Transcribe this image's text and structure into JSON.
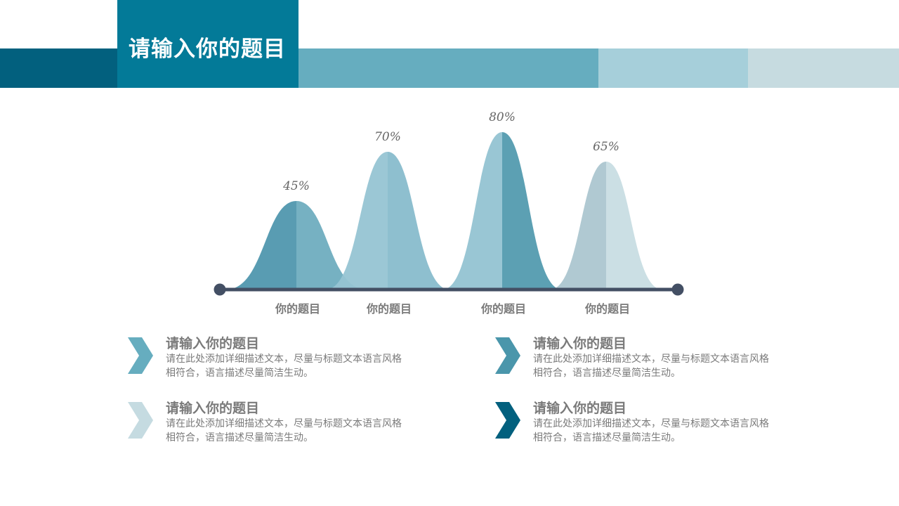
{
  "header": {
    "title": "请输入你的题目",
    "band_colors": [
      "#02607e",
      "#66adbf",
      "#66adbf",
      "#a6cfda",
      "#c6dbe0"
    ]
  },
  "chart_data": {
    "type": "area",
    "categories": [
      "你的题目",
      "你的题目",
      "你的题目",
      "你的题目"
    ],
    "values": [
      45,
      70,
      80,
      65
    ],
    "value_labels": [
      "45%",
      "70%",
      "80%",
      "65%"
    ],
    "ylim": [
      0,
      100
    ],
    "grid": false,
    "colors": [
      [
        "#5097ae",
        "#67a8bb"
      ],
      [
        "#96c4d3",
        "#82b8ca"
      ],
      [
        "#93c3d2",
        "#4a96ab"
      ],
      [
        "#acc6d0",
        "#c5dbe1"
      ]
    ],
    "baseline_color": "#434f64"
  },
  "cards": [
    {
      "title": "请输入你的题目",
      "desc": "请在此处添加详细描述文本，尽量与标题文本语言风格相符合，语言描述尽量简洁生动。",
      "color": "#66adbf"
    },
    {
      "title": "请输入你的题目",
      "desc": "请在此处添加详细描述文本，尽量与标题文本语言风格相符合，语言描述尽量简洁生动。",
      "color": "#4a96ab"
    },
    {
      "title": "请输入你的题目",
      "desc": "请在此处添加详细描述文本，尽量与标题文本语言风格相符合，语言描述尽量简洁生动。",
      "color": "#c5dbe1"
    },
    {
      "title": "请输入你的题目",
      "desc": "请在此处添加详细描述文本，尽量与标题文本语言风格相符合，语言描述尽量简洁生动。",
      "color": "#02607e"
    }
  ]
}
